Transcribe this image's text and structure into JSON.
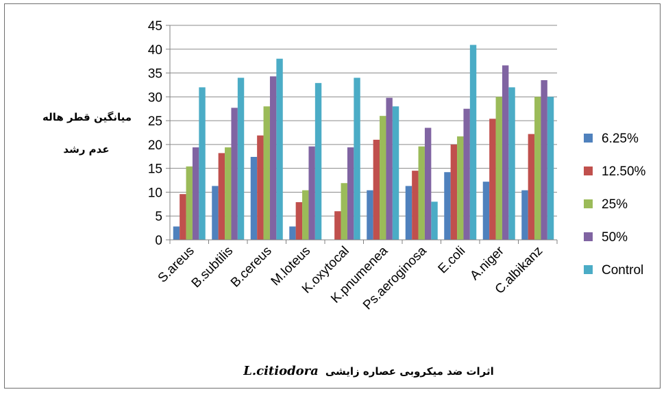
{
  "chart_data": {
    "type": "bar",
    "title_arabic": "اثرات ضد میکروبی عصاره زایشی",
    "title_species": "L.citiodora",
    "ylabel_line1": "میانگین قطر هاله",
    "ylabel_line2": "عدم رشد",
    "ylim": [
      0,
      45
    ],
    "yticks": [
      0,
      5,
      10,
      15,
      20,
      25,
      30,
      35,
      40,
      45
    ],
    "grid": true,
    "legend_position": "right",
    "categories": [
      "S.areus",
      "B.subtilis",
      "B.cereus",
      "M.loteus",
      "K.oxytocal",
      "K.pnumenea",
      "Ps.aeroginosa",
      "E.coli",
      "A.niger",
      "C.albikanz"
    ],
    "series": [
      {
        "name": "6.25%",
        "color": "#4f81bd",
        "values": [
          2.8,
          11.3,
          17.4,
          2.8,
          0,
          10.4,
          11.3,
          14.2,
          12.2,
          10.4
        ]
      },
      {
        "name": "12.50%",
        "color": "#c0504d",
        "values": [
          9.6,
          18.2,
          21.9,
          7.9,
          6.0,
          21.0,
          14.5,
          20.0,
          25.4,
          22.2
        ]
      },
      {
        "name": "25%",
        "color": "#9bbb59",
        "values": [
          15.4,
          19.4,
          28.0,
          10.4,
          11.9,
          26.0,
          19.6,
          21.7,
          30.0,
          30.0
        ]
      },
      {
        "name": "50%",
        "color": "#8064a2",
        "values": [
          19.4,
          27.7,
          34.3,
          19.6,
          19.4,
          29.8,
          23.5,
          27.5,
          36.6,
          33.5
        ]
      },
      {
        "name": "Control",
        "color": "#4bacc6",
        "values": [
          32.0,
          34.0,
          38.0,
          32.9,
          34.0,
          28.0,
          8.0,
          40.9,
          32.0,
          30.0
        ]
      }
    ]
  }
}
